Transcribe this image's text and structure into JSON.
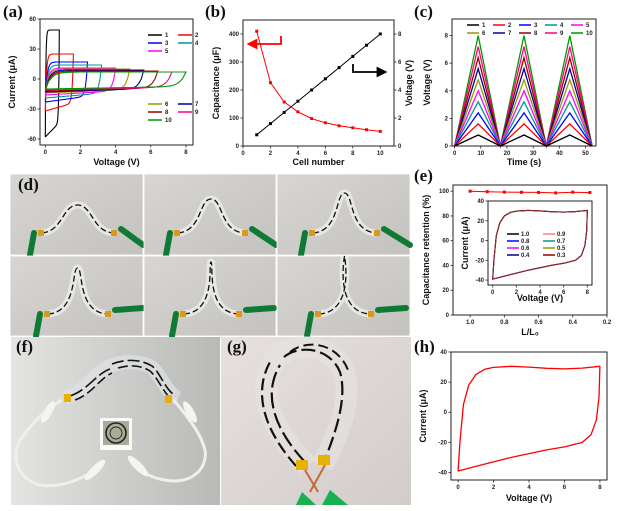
{
  "figure": {
    "panels": [
      "(a)",
      "(b)",
      "(c)",
      "(d)",
      "(e)",
      "(f)",
      "(g)",
      "(h)"
    ]
  },
  "photos": {
    "d": {
      "label": "(d)",
      "description": "Six photos of a flexible printed supercapacitor strip bent to increasing degrees, connected to green alligator clips",
      "count": 6
    },
    "f": {
      "label": "(f)",
      "description": "Bent supercapacitor strip powering an LCD display with a circular logo via white alligator clip leads"
    },
    "g": {
      "label": "(g)",
      "description": "Supercapacitor strip bent into a loop with yellow tape contacts and green clips"
    }
  },
  "chart_data": [
    {
      "id": "a",
      "panel_label": "(a)",
      "type": "line",
      "title": "",
      "xlabel": "Voltage (V)",
      "ylabel": "Current (μA)",
      "xlim": [
        -0.3,
        8.4
      ],
      "ylim": [
        -66,
        60
      ],
      "xticks": [
        0,
        2,
        4,
        6,
        8
      ],
      "yticks": [
        -60,
        -30,
        0,
        30,
        60
      ],
      "legend": {
        "placement": "top-right and bottom-right",
        "entries": [
          "1",
          "2",
          "3",
          "4",
          "5",
          "6",
          "7",
          "8",
          "9",
          "10"
        ]
      },
      "series": [
        {
          "name": "1",
          "color": "#000000",
          "vmax": 0.8,
          "iupper": 49,
          "ilower": -58
        },
        {
          "name": "2",
          "color": "#ff0000",
          "vmax": 1.6,
          "iupper": 25,
          "ilower": -32
        },
        {
          "name": "3",
          "color": "#0000ff",
          "vmax": 2.4,
          "iupper": 17,
          "ilower": -23
        },
        {
          "name": "4",
          "color": "#009999",
          "vmax": 3.2,
          "iupper": 14,
          "ilower": -19
        },
        {
          "name": "5",
          "color": "#ff00ff",
          "vmax": 4.0,
          "iupper": 11,
          "ilower": -16
        },
        {
          "name": "6",
          "color": "#999900",
          "vmax": 4.8,
          "iupper": 10,
          "ilower": -14
        },
        {
          "name": "7",
          "color": "#000099",
          "vmax": 5.6,
          "iupper": 9,
          "ilower": -13
        },
        {
          "name": "8",
          "color": "#990000",
          "vmax": 6.4,
          "iupper": 8,
          "ilower": -12
        },
        {
          "name": "9",
          "color": "#ff0080",
          "vmax": 7.2,
          "iupper": 7,
          "ilower": -11
        },
        {
          "name": "10",
          "color": "#009900",
          "vmax": 8.0,
          "iupper": 7,
          "ilower": -10
        }
      ]
    },
    {
      "id": "b",
      "panel_label": "(b)",
      "type": "line",
      "xlabel": "Cell number",
      "ylabel": "Capacitance (μF)",
      "ylabel_right": "Voltage (V)",
      "xlim": [
        0,
        11
      ],
      "ylim": [
        0,
        450
      ],
      "ylim_right": [
        0,
        9
      ],
      "xticks": [
        0,
        2,
        4,
        6,
        8,
        10
      ],
      "yticks": [
        0,
        100,
        200,
        300,
        400
      ],
      "yticks_right": [
        0,
        2,
        4,
        6,
        8
      ],
      "x": [
        1,
        2,
        3,
        4,
        5,
        6,
        7,
        8,
        9,
        10
      ],
      "series": [
        {
          "name": "Capacitance",
          "axis": "left",
          "color": "#ff0000",
          "values": [
            410,
            226,
            157,
            122,
            98,
            83,
            72,
            65,
            58,
            52
          ]
        },
        {
          "name": "Voltage",
          "axis": "right",
          "color": "#000000",
          "values": [
            0.8,
            1.6,
            2.4,
            3.2,
            4.0,
            4.8,
            5.6,
            6.4,
            7.2,
            8.0
          ]
        }
      ],
      "annotations": [
        "left arrow (red) pointing to capacitance axis",
        "right arrow (black) pointing to voltage axis"
      ]
    },
    {
      "id": "c",
      "panel_label": "(c)",
      "type": "line",
      "xlabel": "Time (s)",
      "ylabel": "Voltage (V)",
      "xlim": [
        -1,
        54
      ],
      "ylim": [
        0,
        9.2
      ],
      "xticks": [
        0,
        10,
        20,
        30,
        40,
        50
      ],
      "yticks": [
        0,
        2,
        4,
        6,
        8
      ],
      "peak_times": [
        9,
        26.5,
        44
      ],
      "trough_times": [
        0,
        17.5,
        35,
        52.5
      ],
      "legend": {
        "placement": "top",
        "entries": [
          "1",
          "2",
          "3",
          "4",
          "5",
          "6",
          "7",
          "8",
          "9",
          "10"
        ]
      },
      "series": [
        {
          "name": "1",
          "color": "#000000",
          "vpeak": 0.8
        },
        {
          "name": "2",
          "color": "#ff0000",
          "vpeak": 1.6
        },
        {
          "name": "3",
          "color": "#0000ff",
          "vpeak": 2.4
        },
        {
          "name": "4",
          "color": "#009999",
          "vpeak": 3.2
        },
        {
          "name": "5",
          "color": "#ff00ff",
          "vpeak": 4.0
        },
        {
          "name": "6",
          "color": "#999900",
          "vpeak": 4.8
        },
        {
          "name": "7",
          "color": "#000099",
          "vpeak": 5.6
        },
        {
          "name": "8",
          "color": "#990000",
          "vpeak": 6.4
        },
        {
          "name": "9",
          "color": "#ff0080",
          "vpeak": 7.2
        },
        {
          "name": "10",
          "color": "#009900",
          "vpeak": 8.0
        }
      ]
    },
    {
      "id": "e",
      "panel_label": "(e)",
      "type": "line",
      "xlabel": "L/L₀",
      "ylabel": "Capacitance retention (%)",
      "xlim": [
        1.1,
        0.2
      ],
      "ylim": [
        0,
        105
      ],
      "xticks": [
        1.0,
        0.8,
        0.6,
        0.4,
        0.2
      ],
      "yticks": [
        0,
        20,
        40,
        60,
        80,
        100
      ],
      "series": [
        {
          "name": "retention",
          "color": "#ff0000",
          "x": [
            1.0,
            0.9,
            0.8,
            0.7,
            0.6,
            0.5,
            0.4,
            0.3
          ],
          "values": [
            100,
            99.6,
            99.3,
            99.1,
            99.0,
            98.6,
            99.2,
            98.9
          ]
        }
      ],
      "inset": {
        "type": "line",
        "xlabel": "Voltage (V)",
        "ylabel": "Current (μA)",
        "xlim": [
          -0.4,
          8.4
        ],
        "ylim": [
          -45,
          40
        ],
        "xticks": [
          0,
          2,
          4,
          6,
          8
        ],
        "yticks": [
          -40,
          -20,
          0,
          20,
          40
        ],
        "legend": {
          "placement": "center",
          "entries": [
            "1.0",
            "0.9",
            "0.8",
            "0.7",
            "0.6",
            "0.5",
            "0.4",
            "0.3"
          ]
        },
        "legend_colors": [
          "#000000",
          "#ff8080",
          "#0000ff",
          "#009999",
          "#ff00ff",
          "#999900",
          "#000099",
          "#990000"
        ]
      }
    },
    {
      "id": "h",
      "panel_label": "(h)",
      "type": "line",
      "xlabel": "Voltage (V)",
      "ylabel": "Current (μA)",
      "xlim": [
        -0.4,
        8.4
      ],
      "ylim": [
        -45,
        40
      ],
      "xticks": [
        0,
        2,
        4,
        6,
        8
      ],
      "yticks": [
        -40,
        -20,
        0,
        20,
        40
      ],
      "series": [
        {
          "name": "CV",
          "color": "#ff0000"
        }
      ]
    }
  ],
  "cv_shape": {
    "upper": [
      [
        0,
        -39
      ],
      [
        0.1,
        -20
      ],
      [
        0.3,
        5
      ],
      [
        0.6,
        18
      ],
      [
        1,
        25
      ],
      [
        1.5,
        28.5
      ],
      [
        2,
        29.8
      ],
      [
        3,
        30.5
      ],
      [
        4,
        30
      ],
      [
        5,
        29.2
      ],
      [
        6,
        28.8
      ],
      [
        7,
        29.3
      ],
      [
        8,
        30.5
      ]
    ],
    "lower": [
      [
        8,
        30.5
      ],
      [
        7.95,
        10
      ],
      [
        7.8,
        -5
      ],
      [
        7.5,
        -15
      ],
      [
        7,
        -20
      ],
      [
        6,
        -23
      ],
      [
        5,
        -25
      ],
      [
        4,
        -27.5
      ],
      [
        3,
        -30
      ],
      [
        2,
        -33
      ],
      [
        1,
        -36
      ],
      [
        0,
        -39
      ]
    ]
  }
}
